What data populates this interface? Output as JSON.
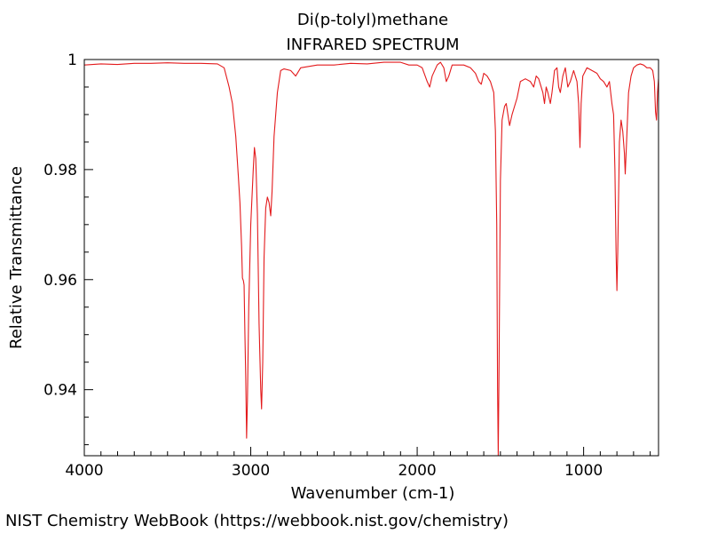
{
  "chart_data": {
    "type": "line",
    "title": "Di(p-tolyl)methane",
    "subtitle": "INFRARED SPECTRUM",
    "xlabel": "Wavenumber (cm-1)",
    "ylabel": "Relative Transmittance",
    "xlim": [
      4000,
      550
    ],
    "ylim": [
      0.928,
      1.0
    ],
    "x_reversed": true,
    "x_ticks": [
      {
        "value": 4000,
        "label": "4000"
      },
      {
        "value": 3000,
        "label": "3000"
      },
      {
        "value": 2000,
        "label": "2000"
      },
      {
        "value": 1000,
        "label": "1000"
      }
    ],
    "y_ticks": [
      {
        "value": 1.0,
        "label": "1"
      },
      {
        "value": 0.98,
        "label": "0.98"
      },
      {
        "value": 0.96,
        "label": "0.96"
      },
      {
        "value": 0.94,
        "label": "0.94"
      }
    ],
    "grid": false,
    "legend": "none",
    "line_color": "#e31a1c",
    "series": [
      {
        "points": [
          [
            4000,
            0.999
          ],
          [
            3900,
            0.9992
          ],
          [
            3800,
            0.9991
          ],
          [
            3700,
            0.9993
          ],
          [
            3600,
            0.9993
          ],
          [
            3500,
            0.9994
          ],
          [
            3400,
            0.9993
          ],
          [
            3300,
            0.9993
          ],
          [
            3200,
            0.9992
          ],
          [
            3160,
            0.9985
          ],
          [
            3130,
            0.995
          ],
          [
            3110,
            0.992
          ],
          [
            3090,
            0.986
          ],
          [
            3075,
            0.979
          ],
          [
            3065,
            0.974
          ],
          [
            3055,
            0.966
          ],
          [
            3050,
            0.9603
          ],
          [
            3044,
            0.9598
          ],
          [
            3040,
            0.959
          ],
          [
            3035,
            0.95
          ],
          [
            3030,
            0.942
          ],
          [
            3025,
            0.9312
          ],
          [
            3020,
            0.938
          ],
          [
            3012,
            0.955
          ],
          [
            3000,
            0.97
          ],
          [
            2985,
            0.98
          ],
          [
            2978,
            0.984
          ],
          [
            2970,
            0.982
          ],
          [
            2960,
            0.972
          ],
          [
            2950,
            0.952
          ],
          [
            2940,
            0.94
          ],
          [
            2935,
            0.9365
          ],
          [
            2928,
            0.945
          ],
          [
            2920,
            0.964
          ],
          [
            2910,
            0.973
          ],
          [
            2900,
            0.975
          ],
          [
            2890,
            0.974
          ],
          [
            2880,
            0.9716
          ],
          [
            2872,
            0.976
          ],
          [
            2860,
            0.986
          ],
          [
            2840,
            0.994
          ],
          [
            2820,
            0.998
          ],
          [
            2800,
            0.9983
          ],
          [
            2760,
            0.998
          ],
          [
            2730,
            0.997
          ],
          [
            2700,
            0.9985
          ],
          [
            2600,
            0.999
          ],
          [
            2500,
            0.999
          ],
          [
            2400,
            0.9993
          ],
          [
            2300,
            0.9992
          ],
          [
            2200,
            0.9995
          ],
          [
            2100,
            0.9995
          ],
          [
            2050,
            0.999
          ],
          [
            2000,
            0.999
          ],
          [
            1970,
            0.9985
          ],
          [
            1940,
            0.996
          ],
          [
            1925,
            0.995
          ],
          [
            1910,
            0.997
          ],
          [
            1880,
            0.999
          ],
          [
            1860,
            0.9995
          ],
          [
            1840,
            0.9985
          ],
          [
            1825,
            0.996
          ],
          [
            1810,
            0.997
          ],
          [
            1790,
            0.999
          ],
          [
            1760,
            0.999
          ],
          [
            1720,
            0.999
          ],
          [
            1680,
            0.9985
          ],
          [
            1650,
            0.9975
          ],
          [
            1630,
            0.996
          ],
          [
            1615,
            0.9955
          ],
          [
            1600,
            0.9975
          ],
          [
            1580,
            0.997
          ],
          [
            1560,
            0.996
          ],
          [
            1540,
            0.994
          ],
          [
            1530,
            0.987
          ],
          [
            1522,
            0.97
          ],
          [
            1517,
            0.94
          ],
          [
            1513,
            0.928
          ],
          [
            1508,
            0.945
          ],
          [
            1500,
            0.978
          ],
          [
            1490,
            0.989
          ],
          [
            1475,
            0.9915
          ],
          [
            1465,
            0.992
          ],
          [
            1455,
            0.99
          ],
          [
            1445,
            0.988
          ],
          [
            1430,
            0.99
          ],
          [
            1420,
            0.991
          ],
          [
            1400,
            0.993
          ],
          [
            1380,
            0.996
          ],
          [
            1350,
            0.9965
          ],
          [
            1320,
            0.996
          ],
          [
            1300,
            0.995
          ],
          [
            1285,
            0.997
          ],
          [
            1270,
            0.9965
          ],
          [
            1245,
            0.994
          ],
          [
            1235,
            0.992
          ],
          [
            1225,
            0.995
          ],
          [
            1215,
            0.994
          ],
          [
            1200,
            0.992
          ],
          [
            1190,
            0.994
          ],
          [
            1175,
            0.998
          ],
          [
            1160,
            0.9985
          ],
          [
            1150,
            0.995
          ],
          [
            1140,
            0.994
          ],
          [
            1125,
            0.997
          ],
          [
            1110,
            0.9985
          ],
          [
            1095,
            0.995
          ],
          [
            1080,
            0.996
          ],
          [
            1060,
            0.998
          ],
          [
            1040,
            0.996
          ],
          [
            1030,
            0.992
          ],
          [
            1022,
            0.984
          ],
          [
            1015,
            0.992
          ],
          [
            1005,
            0.997
          ],
          [
            980,
            0.9985
          ],
          [
            950,
            0.998
          ],
          [
            920,
            0.9975
          ],
          [
            900,
            0.9965
          ],
          [
            880,
            0.996
          ],
          [
            860,
            0.995
          ],
          [
            845,
            0.996
          ],
          [
            830,
            0.992
          ],
          [
            820,
            0.99
          ],
          [
            812,
            0.98
          ],
          [
            805,
            0.965
          ],
          [
            800,
            0.958
          ],
          [
            795,
            0.965
          ],
          [
            785,
            0.985
          ],
          [
            775,
            0.989
          ],
          [
            765,
            0.987
          ],
          [
            755,
            0.983
          ],
          [
            750,
            0.9792
          ],
          [
            742,
            0.985
          ],
          [
            730,
            0.994
          ],
          [
            715,
            0.997
          ],
          [
            700,
            0.9985
          ],
          [
            680,
            0.999
          ],
          [
            660,
            0.9992
          ],
          [
            640,
            0.999
          ],
          [
            620,
            0.9985
          ],
          [
            600,
            0.9985
          ],
          [
            585,
            0.998
          ],
          [
            575,
            0.996
          ],
          [
            568,
            0.9905
          ],
          [
            562,
            0.989
          ],
          [
            556,
            0.994
          ],
          [
            550,
            0.9965
          ]
        ]
      }
    ]
  },
  "footer": {
    "source": "NIST Chemistry WebBook (https://webbook.nist.gov/chemistry)"
  }
}
